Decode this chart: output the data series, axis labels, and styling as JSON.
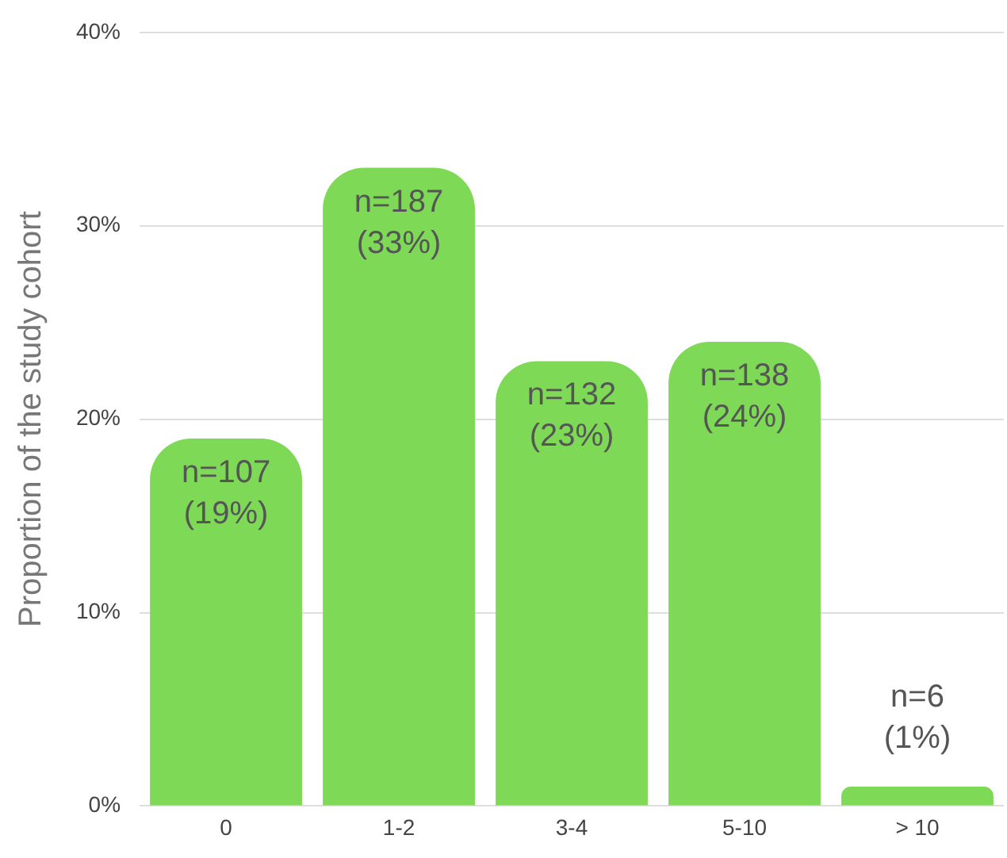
{
  "chart_data": {
    "type": "bar",
    "ylabel": "Proportion of the study cohort",
    "categories": [
      "0",
      "1-2",
      "3-4",
      "5-10",
      "> 10"
    ],
    "values": [
      19,
      33,
      23,
      24,
      1
    ],
    "value_labels": [
      "n=107 (19%)",
      "n=187 (33%)",
      "n=132 (23%)",
      "n=138 (24%)",
      "n=6 (1%)"
    ],
    "color": "#7ed957",
    "ylim": [
      0,
      40
    ],
    "yticks": [
      {
        "value": 0,
        "label": "0%"
      },
      {
        "value": 10,
        "label": "10%"
      },
      {
        "value": 20,
        "label": "20%"
      },
      {
        "value": 30,
        "label": "30%"
      },
      {
        "value": 40,
        "label": "40%"
      }
    ],
    "grid": "y",
    "legend": false
  }
}
